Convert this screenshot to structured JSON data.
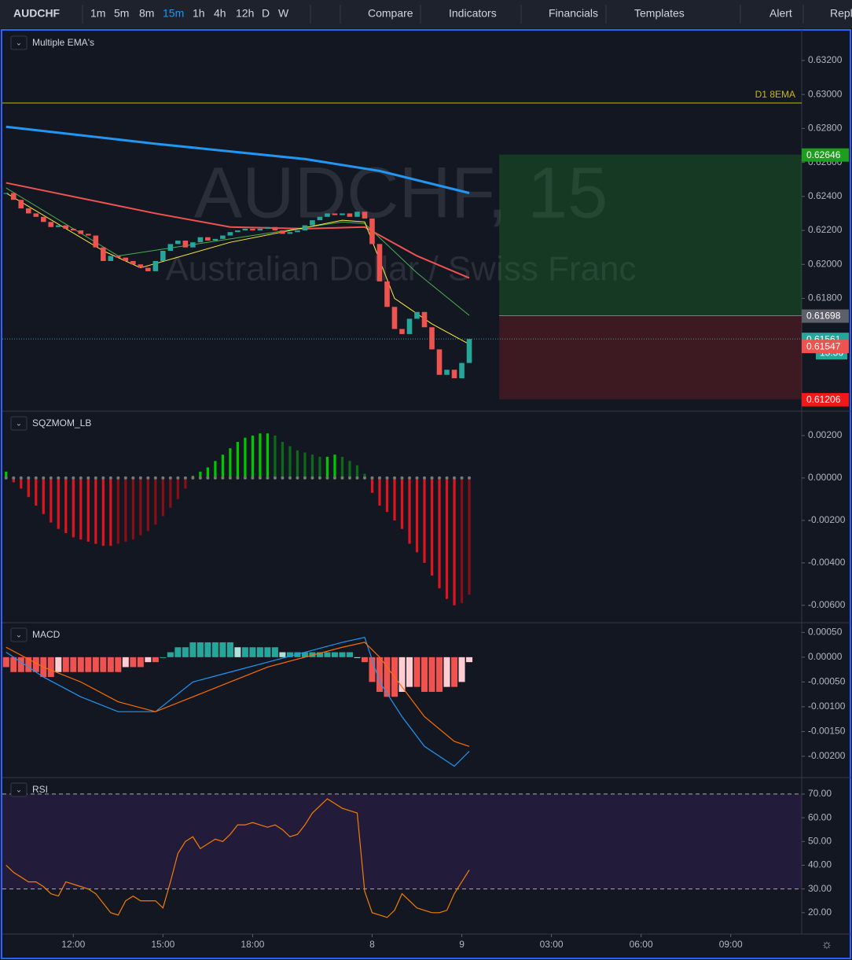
{
  "toolbar": {
    "symbol": "AUDCHF",
    "intervals": [
      "1m",
      "5m",
      "8m",
      "15m",
      "1h",
      "4h",
      "12h",
      "D",
      "W"
    ],
    "active": 3,
    "buttons": [
      "Compare",
      "Indicators",
      "Financials",
      "Templates",
      "Alert",
      "Repl"
    ]
  },
  "chart_data": [
    {
      "type": "candlestick",
      "title": "Multiple EMA's",
      "watermark": "AUDCHF, 15",
      "watermark_subtitle": "Australian Dollar / Swiss Franc",
      "xlim": [
        -0.5,
        106.5
      ],
      "xticks": [
        {
          "value": 9,
          "label": "12:00"
        },
        {
          "value": 21,
          "label": "15:00"
        },
        {
          "value": 33,
          "label": "18:00"
        },
        {
          "value": 49,
          "label": "8"
        },
        {
          "value": 61,
          "label": "9"
        },
        {
          "value": 73,
          "label": "03:00"
        },
        {
          "value": 85,
          "label": "06:00"
        },
        {
          "value": 97,
          "label": "09:00"
        }
      ],
      "ylim": [
        0.61136,
        0.63371
      ],
      "yticks": [
        {
          "value": 0.632,
          "label": "0.63200"
        },
        {
          "value": 0.63,
          "label": "0.63000"
        },
        {
          "value": 0.628,
          "label": "0.62800"
        },
        {
          "value": 0.626,
          "label": "0.62600"
        },
        {
          "value": 0.624,
          "label": "0.62400"
        },
        {
          "value": 0.622,
          "label": "0.62200"
        },
        {
          "value": 0.62,
          "label": "0.62000"
        },
        {
          "value": 0.618,
          "label": "0.61800"
        }
      ],
      "values": [
        0.6242,
        0.6238,
        0.6233,
        0.623,
        0.6228,
        0.6225,
        0.6222,
        0.6223,
        0.6221,
        0.622,
        0.6218,
        0.6217,
        0.621,
        0.6202,
        0.6205,
        0.6204,
        0.6202,
        0.62,
        0.6198,
        0.6196,
        0.6202,
        0.6208,
        0.6212,
        0.6214,
        0.621,
        0.6213,
        0.6216,
        0.6214,
        0.6215,
        0.6217,
        0.6219,
        0.622,
        0.6221,
        0.622,
        0.6221,
        0.6222,
        0.622,
        0.6218,
        0.6219,
        0.622,
        0.6223,
        0.6226,
        0.6228,
        0.623,
        0.6229,
        0.623,
        0.6228,
        0.6231,
        0.6227,
        0.6212,
        0.619,
        0.6175,
        0.6162,
        0.6159,
        0.6168,
        0.6172,
        0.6163,
        0.615,
        0.6135,
        0.6138,
        0.6133,
        0.6142,
        0.61561
      ],
      "up_color": "#26a69a",
      "down_color": "#ef5350",
      "series": [
        {
          "color": "#2196f3",
          "x": [
            0,
            20,
            40,
            50,
            62
          ],
          "values": [
            0.6281,
            0.6271,
            0.6262,
            0.6255,
            0.6242
          ]
        },
        {
          "color": "#ef5350",
          "x": [
            0,
            20,
            30,
            40,
            48,
            55,
            62
          ],
          "values": [
            0.6248,
            0.623,
            0.6222,
            0.6221,
            0.6222,
            0.6205,
            0.6192
          ]
        },
        {
          "color": "#4caf50",
          "x": [
            0,
            15,
            30,
            45,
            48,
            55,
            62
          ],
          "values": [
            0.6245,
            0.6205,
            0.6215,
            0.6225,
            0.6224,
            0.6195,
            0.617
          ]
        },
        {
          "color": "#ffeb3b",
          "x": [
            0,
            13,
            18,
            30,
            45,
            48,
            52,
            57,
            62
          ],
          "values": [
            0.6242,
            0.6208,
            0.6198,
            0.6213,
            0.6226,
            0.6225,
            0.618,
            0.6165,
            0.6153
          ]
        }
      ],
      "hline": {
        "value": 0.6295,
        "label": "D1 8EMA",
        "color": "#c9b900"
      },
      "position": {
        "x_start": 66,
        "target": 0.62646,
        "entry": 0.61698,
        "stop": 0.61206
      },
      "price_labels": [
        {
          "value": 0.62646,
          "label": "0.62646",
          "color": "#1e9e1e"
        },
        {
          "value": 0.61698,
          "label": "0.61698",
          "color": "#5d606b"
        },
        {
          "value": 0.61561,
          "label": "0.61561",
          "color": "#26a69a"
        },
        {
          "value": 0.61547,
          "label": "0.61547",
          "color": "#ef5350"
        },
        {
          "value": 0.61206,
          "label": "0.61206",
          "color": "#f01818"
        }
      ],
      "countdown": "13:36"
    },
    {
      "type": "squeeze",
      "title": "SQZMOM_LB",
      "ylim": [
        -0.00682,
        0.00311
      ],
      "yticks": [
        {
          "value": 0.002,
          "label": "0.00200"
        },
        {
          "value": 0,
          "label": "0.00000"
        },
        {
          "value": -0.002,
          "label": "-0.00200"
        },
        {
          "value": -0.004,
          "label": "-0.00400"
        },
        {
          "value": -0.006,
          "label": "-0.00600"
        }
      ],
      "values": [
        0.0003,
        -0.0002,
        -0.0005,
        -0.0009,
        -0.0013,
        -0.0017,
        -0.0021,
        -0.0024,
        -0.0026,
        -0.0028,
        -0.0029,
        -0.003,
        -0.0031,
        -0.0032,
        -0.0032,
        -0.0031,
        -0.003,
        -0.0029,
        -0.0027,
        -0.0025,
        -0.0022,
        -0.0018,
        -0.0014,
        -0.001,
        -0.0005,
        0.0001,
        0.0003,
        0.0005,
        0.0008,
        0.0011,
        0.0014,
        0.0017,
        0.0019,
        0.002,
        0.0021,
        0.0021,
        0.002,
        0.0017,
        0.0015,
        0.0013,
        0.0012,
        0.0011,
        0.001,
        0.001,
        0.0011,
        0.001,
        0.0008,
        0.0006,
        0.0002,
        -0.0007,
        -0.0013,
        -0.0016,
        -0.002,
        -0.0024,
        -0.0031,
        -0.0035,
        -0.004,
        -0.0046,
        -0.0052,
        -0.0057,
        -0.006,
        -0.0059,
        -0.0055
      ]
    },
    {
      "type": "macd",
      "title": "MACD",
      "ylim": [
        -0.00243,
        0.00068
      ],
      "yticks": [
        {
          "value": 0.0005,
          "label": "0.00050"
        },
        {
          "value": 0,
          "label": "0.00000"
        },
        {
          "value": -0.0005,
          "label": "-0.00050"
        },
        {
          "value": -0.001,
          "label": "-0.00100"
        },
        {
          "value": -0.0015,
          "label": "-0.00150"
        },
        {
          "value": -0.002,
          "label": "-0.00200"
        }
      ],
      "values": [
        -0.0002,
        -0.0003,
        -0.0003,
        -0.0003,
        -0.0003,
        -0.0004,
        -0.0004,
        -0.0003,
        -0.0003,
        -0.0003,
        -0.0003,
        -0.0003,
        -0.0003,
        -0.0003,
        -0.0003,
        -0.0003,
        -0.0002,
        -0.0002,
        -0.0002,
        -0.0001,
        -0.0001,
        0,
        0.0001,
        0.0002,
        0.0002,
        0.0003,
        0.0003,
        0.0003,
        0.0003,
        0.0003,
        0.0003,
        0.0002,
        0.0002,
        0.0002,
        0.0002,
        0.0002,
        0.0002,
        0.0001,
        0.0001,
        0.0001,
        0.0001,
        0.0001,
        0.0001,
        0.0001,
        0.0001,
        0.0001,
        0.0001,
        0,
        -0.0001,
        -0.0005,
        -0.0007,
        -0.0008,
        -0.0008,
        -0.0007,
        -0.0006,
        -0.0006,
        -0.0007,
        -0.0007,
        -0.0007,
        -0.0006,
        -0.0006,
        -0.0005,
        -0.0001
      ],
      "series": [
        {
          "color": "#2196f3",
          "x": [
            0,
            5,
            10,
            15,
            20,
            25,
            30,
            35,
            40,
            45,
            48,
            50,
            53,
            56,
            60,
            62
          ],
          "values": [
            0.0001,
            -0.0004,
            -0.0008,
            -0.0011,
            -0.0011,
            -0.0005,
            -0.0003,
            -0.0001,
            0.0001,
            0.0003,
            0.0004,
            -0.0005,
            -0.0012,
            -0.0018,
            -0.0022,
            -0.0019
          ]
        },
        {
          "color": "#ff6d00",
          "x": [
            0,
            5,
            10,
            15,
            20,
            25,
            30,
            35,
            40,
            45,
            48,
            50,
            53,
            56,
            60,
            62
          ],
          "values": [
            0.0002,
            -0.0002,
            -0.0005,
            -0.0009,
            -0.0011,
            -0.0008,
            -0.0005,
            -0.0002,
            0,
            0.0002,
            0.0003,
            0,
            -0.0006,
            -0.0012,
            -0.0017,
            -0.0018
          ]
        }
      ]
    },
    {
      "type": "rsi",
      "title": "RSI",
      "ylim": [
        11,
        76.6
      ],
      "yticks": [
        {
          "value": 70,
          "label": "70.00"
        },
        {
          "value": 60,
          "label": "60.00"
        },
        {
          "value": 50,
          "label": "50.00"
        },
        {
          "value": 40,
          "label": "40.00"
        },
        {
          "value": 30,
          "label": "30.00"
        },
        {
          "value": 20,
          "label": "20.00"
        }
      ],
      "band": [
        30,
        70
      ],
      "color": "#f57c00",
      "values": [
        40,
        37,
        35,
        33,
        33,
        31,
        28,
        27,
        33,
        32,
        31,
        30,
        28,
        24,
        20,
        19,
        25,
        27,
        25,
        25,
        25,
        22,
        33,
        45,
        50,
        52,
        47,
        49,
        51,
        50,
        53,
        57,
        57,
        58,
        57,
        56,
        57,
        55,
        52,
        53,
        57,
        62,
        65,
        68,
        66,
        64,
        63,
        62,
        29,
        20,
        19,
        18,
        21,
        28,
        25,
        22,
        21,
        20,
        20,
        21,
        28,
        33,
        38
      ]
    }
  ]
}
